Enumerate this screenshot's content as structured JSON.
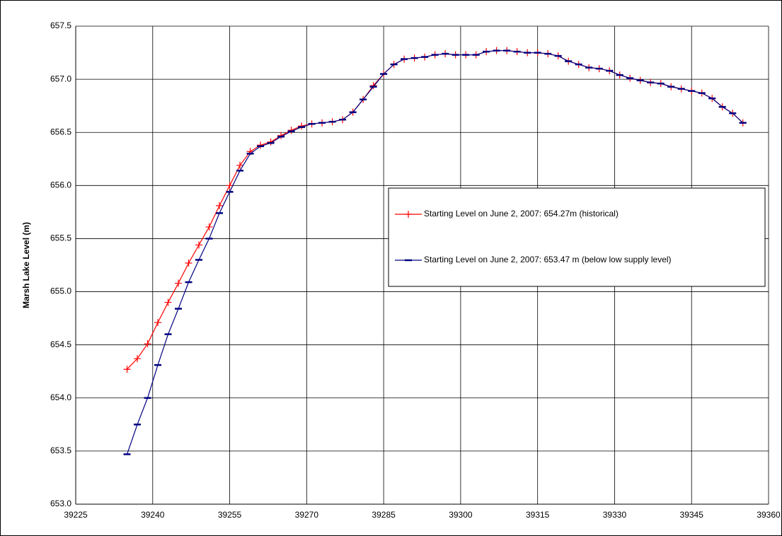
{
  "chart_data": {
    "type": "line",
    "y_label": "Marsh Lake Level (m)",
    "xlim": [
      39225,
      39360
    ],
    "xticks": [
      39225,
      39240,
      39255,
      39270,
      39285,
      39300,
      39315,
      39330,
      39345,
      39360
    ],
    "ylim": [
      653.0,
      657.5
    ],
    "yticks": [
      {
        "value": 653.0,
        "label": "653.0"
      },
      {
        "value": 653.5,
        "label": "653.5"
      },
      {
        "value": 654.0,
        "label": "654.0"
      },
      {
        "value": 654.5,
        "label": "654.5"
      },
      {
        "value": 655.0,
        "label": "655.0"
      },
      {
        "value": 655.5,
        "label": "655.5"
      },
      {
        "value": 656.0,
        "label": "656.0"
      },
      {
        "value": 656.5,
        "label": "656.5"
      },
      {
        "value": 657.0,
        "label": "657.0"
      },
      {
        "value": 657.5,
        "label": "657.5"
      }
    ],
    "grid": true,
    "x": [
      39235,
      39237,
      39239,
      39241,
      39243,
      39245,
      39247,
      39249,
      39251,
      39253,
      39255,
      39257,
      39259,
      39261,
      39263,
      39265,
      39267,
      39269,
      39271,
      39273,
      39275,
      39277,
      39279,
      39281,
      39283,
      39285,
      39287,
      39289,
      39291,
      39293,
      39295,
      39297,
      39299,
      39301,
      39303,
      39305,
      39307,
      39309,
      39311,
      39313,
      39315,
      39317,
      39319,
      39321,
      39323,
      39325,
      39327,
      39329,
      39331,
      39333,
      39335,
      39337,
      39339,
      39341,
      39343,
      39345,
      39347,
      39349,
      39351,
      39353,
      39355
    ],
    "series": [
      {
        "name": "Starting Level on June 2, 2007: 654.27m (historical)",
        "color": "#ff0000",
        "marker": "plus",
        "values": [
          654.27,
          654.37,
          654.51,
          654.71,
          654.9,
          655.08,
          655.27,
          655.44,
          655.61,
          655.81,
          656.0,
          656.19,
          656.32,
          656.38,
          656.41,
          656.47,
          656.52,
          656.56,
          656.58,
          656.59,
          656.6,
          656.62,
          656.69,
          656.81,
          656.94,
          657.05,
          657.14,
          657.19,
          657.2,
          657.21,
          657.23,
          657.24,
          657.23,
          657.23,
          657.23,
          657.26,
          657.27,
          657.27,
          657.26,
          657.25,
          657.25,
          657.24,
          657.22,
          657.17,
          657.14,
          657.11,
          657.1,
          657.08,
          657.04,
          657.01,
          656.99,
          656.97,
          656.96,
          656.93,
          656.91,
          656.89,
          656.87,
          656.82,
          656.74,
          656.68,
          656.59
        ]
      },
      {
        "name": "Starting Level on June 2, 2007: 653.47 m (below low supply level)",
        "color": "#000080",
        "marker": "dash",
        "values": [
          653.47,
          653.75,
          654.0,
          654.31,
          654.6,
          654.84,
          655.09,
          655.3,
          655.5,
          655.74,
          655.94,
          656.14,
          656.3,
          656.37,
          656.4,
          656.46,
          656.51,
          656.55,
          656.58,
          656.59,
          656.6,
          656.62,
          656.69,
          656.81,
          656.93,
          657.05,
          657.14,
          657.19,
          657.2,
          657.21,
          657.23,
          657.24,
          657.23,
          657.23,
          657.23,
          657.26,
          657.27,
          657.27,
          657.26,
          657.25,
          657.25,
          657.24,
          657.22,
          657.17,
          657.14,
          657.11,
          657.1,
          657.08,
          657.04,
          657.01,
          656.99,
          656.97,
          656.96,
          656.93,
          656.91,
          656.89,
          656.87,
          656.82,
          656.74,
          656.68,
          656.59
        ]
      }
    ]
  }
}
